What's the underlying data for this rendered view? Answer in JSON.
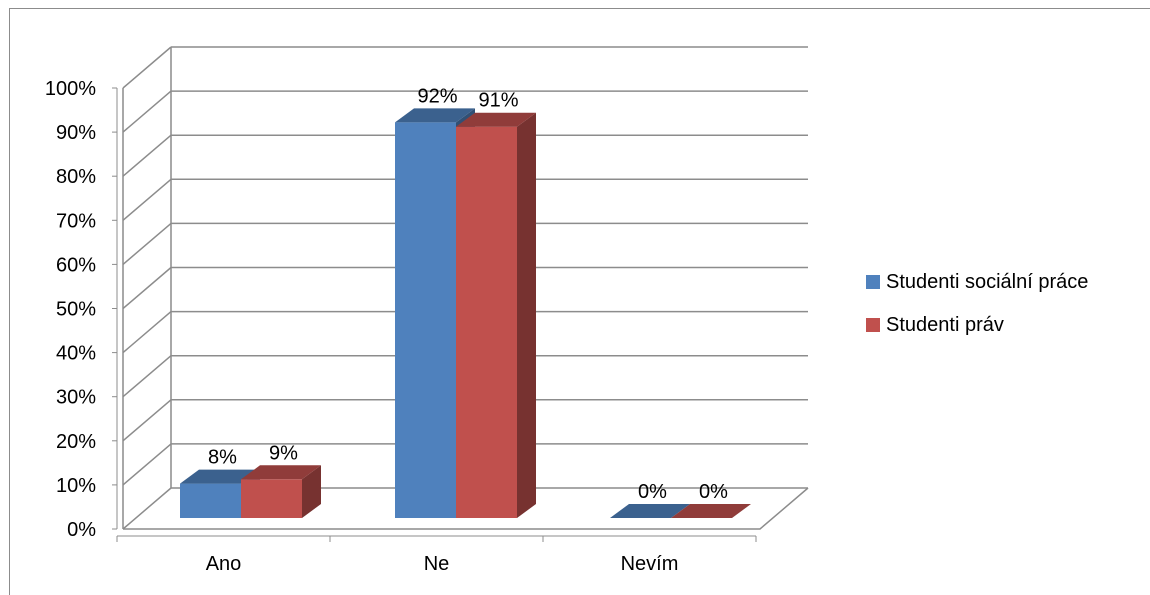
{
  "chart_data": {
    "type": "bar",
    "title": "",
    "xlabel": "",
    "ylabel": "",
    "ylim": [
      0,
      100
    ],
    "yticks": [
      0,
      10,
      20,
      30,
      40,
      50,
      60,
      70,
      80,
      90,
      100
    ],
    "ytick_suffix": "%",
    "categories": [
      "Ano",
      "Ne",
      "Nevím"
    ],
    "series": [
      {
        "name": "Studenti sociální práce",
        "values": [
          8,
          92,
          0
        ],
        "color": "#4f81bd"
      },
      {
        "name": "Studenti práv",
        "values": [
          9,
          91,
          0
        ],
        "color": "#c0504d"
      }
    ],
    "data_labels": true,
    "grid": true,
    "legend": "right"
  }
}
